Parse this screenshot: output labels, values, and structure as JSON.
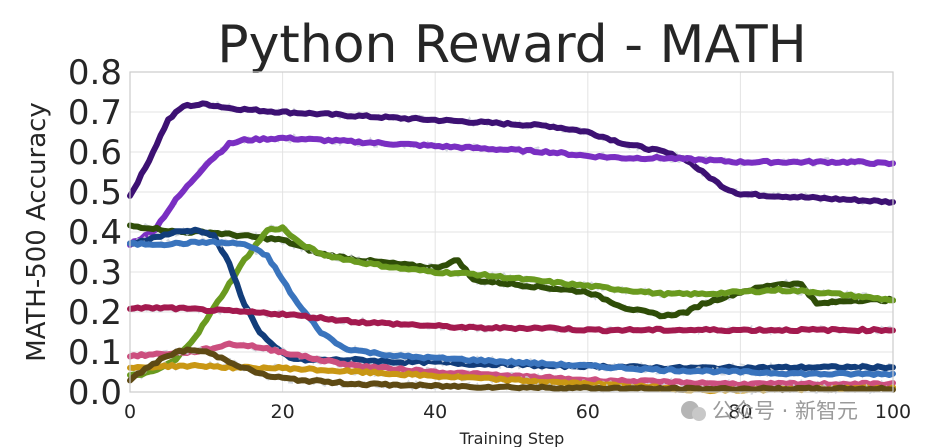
{
  "chart_data": {
    "type": "line",
    "title": "Python Reward - MATH",
    "xlabel": "Training Step",
    "ylabel": "MATH-500 Accuracy",
    "xlim": [
      0,
      100
    ],
    "ylim": [
      0,
      0.8
    ],
    "xticks": [
      0,
      20,
      40,
      60,
      80,
      100
    ],
    "xtick_labels": [
      "0",
      "20",
      "40",
      "60",
      "80",
      "100"
    ],
    "yticks": [
      0.0,
      0.1,
      0.2,
      0.3,
      0.4,
      0.5,
      0.6,
      0.7,
      0.8
    ],
    "ytick_labels": [
      "0.0",
      "0.1",
      "0.2",
      "0.3",
      "0.4",
      "0.5",
      "0.6",
      "0.7",
      "0.8"
    ],
    "grid": true,
    "legend": "none",
    "series": [
      {
        "name": "dark-purple",
        "color": "#3d1173",
        "x": [
          0,
          2,
          5,
          7,
          10,
          13,
          16,
          20,
          25,
          30,
          35,
          40,
          45,
          50,
          55,
          60,
          65,
          70,
          73,
          75,
          78,
          80,
          85,
          90,
          95,
          100
        ],
        "values": [
          0.49,
          0.56,
          0.68,
          0.715,
          0.72,
          0.71,
          0.705,
          0.7,
          0.695,
          0.69,
          0.685,
          0.68,
          0.675,
          0.67,
          0.665,
          0.65,
          0.62,
          0.6,
          0.58,
          0.55,
          0.51,
          0.495,
          0.49,
          0.485,
          0.48,
          0.475
        ]
      },
      {
        "name": "violet",
        "color": "#7a2fc2",
        "x": [
          0,
          3,
          6,
          10,
          13,
          15,
          20,
          25,
          30,
          35,
          40,
          45,
          50,
          55,
          60,
          65,
          70,
          75,
          80,
          85,
          90,
          95,
          100
        ],
        "values": [
          0.37,
          0.4,
          0.48,
          0.57,
          0.62,
          0.63,
          0.635,
          0.63,
          0.625,
          0.62,
          0.615,
          0.61,
          0.605,
          0.6,
          0.59,
          0.585,
          0.585,
          0.58,
          0.575,
          0.575,
          0.575,
          0.575,
          0.57
        ]
      },
      {
        "name": "dark-olive",
        "color": "#2f4d08",
        "x": [
          0,
          3,
          6,
          10,
          15,
          20,
          25,
          30,
          35,
          40,
          43,
          45,
          50,
          55,
          60,
          65,
          70,
          73,
          75,
          80,
          85,
          88,
          90,
          95,
          100
        ],
        "values": [
          0.415,
          0.41,
          0.4,
          0.4,
          0.39,
          0.38,
          0.345,
          0.33,
          0.32,
          0.31,
          0.33,
          0.28,
          0.27,
          0.26,
          0.25,
          0.21,
          0.19,
          0.2,
          0.22,
          0.25,
          0.27,
          0.27,
          0.22,
          0.23,
          0.23
        ]
      },
      {
        "name": "light-olive",
        "color": "#6a9a1f",
        "x": [
          0,
          3,
          6,
          9,
          12,
          15,
          18,
          20,
          22,
          25,
          30,
          35,
          40,
          45,
          50,
          55,
          60,
          65,
          70,
          75,
          80,
          85,
          90,
          95,
          100
        ],
        "values": [
          0.04,
          0.05,
          0.08,
          0.15,
          0.24,
          0.33,
          0.405,
          0.41,
          0.375,
          0.345,
          0.325,
          0.31,
          0.3,
          0.295,
          0.285,
          0.275,
          0.265,
          0.255,
          0.245,
          0.245,
          0.25,
          0.255,
          0.25,
          0.24,
          0.23
        ]
      },
      {
        "name": "navy",
        "color": "#123d7a",
        "x": [
          0,
          3,
          6,
          9,
          11,
          13,
          15,
          17,
          19,
          21,
          23,
          25,
          30,
          35,
          40,
          45,
          50,
          55,
          60,
          70,
          80,
          90,
          100
        ],
        "values": [
          0.37,
          0.385,
          0.4,
          0.405,
          0.39,
          0.32,
          0.22,
          0.15,
          0.11,
          0.085,
          0.08,
          0.08,
          0.08,
          0.075,
          0.075,
          0.07,
          0.07,
          0.065,
          0.065,
          0.06,
          0.06,
          0.062,
          0.062
        ]
      },
      {
        "name": "steel-blue",
        "color": "#3a74bd",
        "x": [
          0,
          5,
          10,
          15,
          18,
          20,
          22,
          25,
          28,
          31,
          35,
          40,
          45,
          50,
          55,
          60,
          70,
          80,
          90,
          100
        ],
        "values": [
          0.37,
          0.37,
          0.375,
          0.37,
          0.34,
          0.28,
          0.22,
          0.15,
          0.11,
          0.1,
          0.09,
          0.085,
          0.08,
          0.075,
          0.07,
          0.065,
          0.055,
          0.05,
          0.045,
          0.045
        ]
      },
      {
        "name": "crimson",
        "color": "#a31a4f",
        "x": [
          0,
          5,
          10,
          15,
          20,
          25,
          30,
          35,
          40,
          45,
          50,
          55,
          60,
          65,
          70,
          75,
          80,
          85,
          90,
          95,
          100
        ],
        "values": [
          0.21,
          0.21,
          0.205,
          0.2,
          0.195,
          0.185,
          0.175,
          0.17,
          0.165,
          0.16,
          0.16,
          0.16,
          0.155,
          0.155,
          0.155,
          0.155,
          0.155,
          0.155,
          0.155,
          0.155,
          0.155
        ]
      },
      {
        "name": "pink",
        "color": "#cc4f7f",
        "x": [
          0,
          4,
          8,
          11,
          13,
          16,
          20,
          25,
          30,
          40,
          50,
          60,
          70,
          80,
          90,
          100
        ],
        "values": [
          0.09,
          0.095,
          0.1,
          0.11,
          0.12,
          0.115,
          0.1,
          0.08,
          0.065,
          0.05,
          0.04,
          0.03,
          0.025,
          0.02,
          0.02,
          0.02
        ]
      },
      {
        "name": "gold",
        "color": "#c99714",
        "x": [
          0,
          5,
          10,
          15,
          20,
          25,
          30,
          35,
          40,
          50,
          60,
          70,
          75,
          80,
          90,
          100
        ],
        "values": [
          0.06,
          0.065,
          0.065,
          0.06,
          0.06,
          0.055,
          0.05,
          0.045,
          0.04,
          0.03,
          0.02,
          0.01,
          0.005,
          0.005,
          0.008,
          0.01
        ]
      },
      {
        "name": "dark-brown",
        "color": "#5e4a14",
        "x": [
          0,
          3,
          6,
          8,
          10,
          12,
          15,
          18,
          22,
          26,
          30,
          40,
          50,
          60,
          70,
          80,
          90,
          100
        ],
        "values": [
          0.03,
          0.07,
          0.1,
          0.105,
          0.1,
          0.085,
          0.06,
          0.04,
          0.03,
          0.025,
          0.02,
          0.015,
          0.012,
          0.01,
          0.008,
          0.008,
          0.008,
          0.008
        ]
      }
    ]
  },
  "watermark": "公众号 · 新智元"
}
